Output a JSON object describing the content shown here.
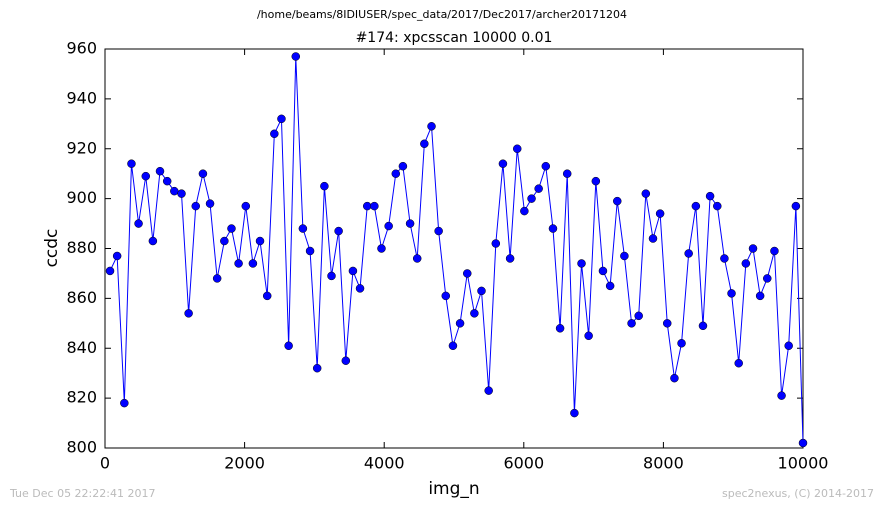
{
  "chart_data": {
    "type": "line",
    "header": "/home/beams/8IDIUSER/spec_data/2017/Dec2017/archer20171204",
    "title": "#174: xpcsscan 10000 0.01",
    "xlabel": "img_n",
    "ylabel": "ccdc",
    "timestamp": "Tue Dec 05 22:22:41 2017",
    "credit": "spec2nexus, (C) 2014-2017",
    "xlim": [
      0,
      10000
    ],
    "ylim": [
      800,
      960
    ],
    "xticks": [
      0,
      2000,
      4000,
      6000,
      8000,
      10000
    ],
    "yticks": [
      800,
      820,
      840,
      860,
      880,
      900,
      920,
      940,
      960
    ],
    "grid": false,
    "markers": true,
    "series": [
      {
        "name": "ccdc",
        "color": "#0000ff",
        "x": [
          72,
          174,
          277,
          379,
          481,
          584,
          686,
          788,
          891,
          993,
          1096,
          1198,
          1300,
          1403,
          1505,
          1607,
          1710,
          1812,
          1914,
          2017,
          2119,
          2221,
          2324,
          2426,
          2528,
          2631,
          2733,
          2835,
          2938,
          3040,
          3143,
          3245,
          3347,
          3450,
          3552,
          3654,
          3757,
          3859,
          3961,
          4064,
          4166,
          4268,
          4371,
          4473,
          4575,
          4678,
          4780,
          4882,
          4985,
          5087,
          5190,
          5292,
          5394,
          5497,
          5599,
          5701,
          5804,
          5906,
          6008,
          6111,
          6213,
          6315,
          6418,
          6520,
          6622,
          6725,
          6827,
          6929,
          7032,
          7134,
          7237,
          7339,
          7441,
          7544,
          7646,
          7748,
          7851,
          7953,
          8055,
          8158,
          8260,
          8362,
          8465,
          8567,
          8669,
          8772,
          8874,
          8976,
          9079,
          9181,
          9284,
          9386,
          9488,
          9591,
          9693,
          9795,
          9898,
          10000
        ],
        "values": [
          871,
          877,
          818,
          914,
          890,
          909,
          883,
          911,
          907,
          903,
          902,
          854,
          897,
          910,
          898,
          868,
          883,
          888,
          874,
          897,
          874,
          883,
          861,
          926,
          932,
          841,
          957,
          888,
          879,
          832,
          905,
          869,
          887,
          835,
          871,
          864,
          897,
          897,
          880,
          889,
          910,
          913,
          890,
          876,
          922,
          929,
          887,
          861,
          841,
          850,
          870,
          854,
          863,
          823,
          882,
          914,
          876,
          920,
          895,
          900,
          904,
          913,
          888,
          848,
          910,
          814,
          874,
          845,
          907,
          871,
          865,
          899,
          877,
          850,
          853,
          902,
          884,
          894,
          850,
          828,
          842,
          878,
          897,
          849,
          901,
          897,
          876,
          862,
          834,
          874,
          880,
          861,
          868,
          879,
          821,
          841,
          897,
          802
        ]
      }
    ]
  }
}
